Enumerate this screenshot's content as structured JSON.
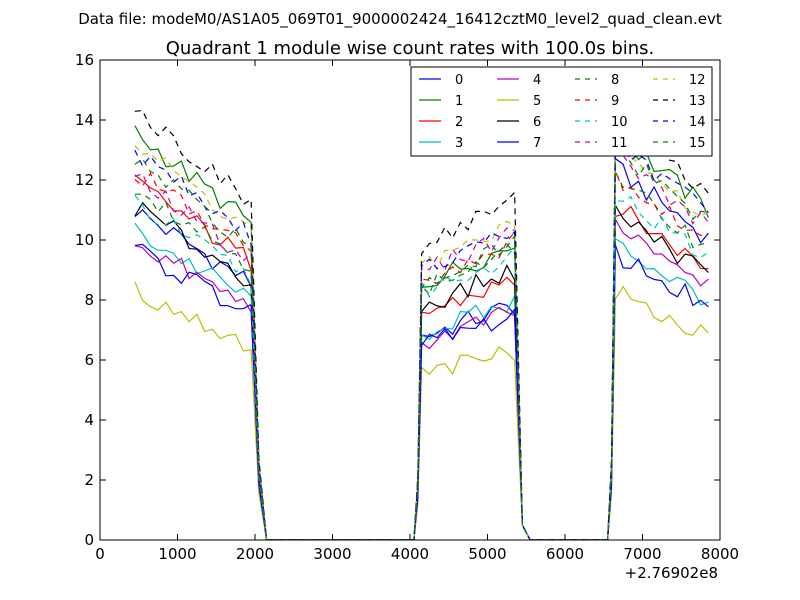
{
  "chart_data": {
    "type": "line",
    "suptitle": "Data file: modeM0/AS1A05_069T01_9000002424_16412cztM0_level2_quad_clean.evt",
    "title": "Quadrant 1 module wise count rates with 100.0s bins.",
    "xlabel": "",
    "ylabel": "",
    "x_offset_label": "+2.76902e8",
    "xlim": [
      0,
      8000
    ],
    "ylim": [
      0,
      16
    ],
    "x_ticks": [
      0,
      1000,
      2000,
      3000,
      4000,
      5000,
      6000,
      7000,
      8000
    ],
    "x_tick_labels": [
      "0",
      "1000",
      "2000",
      "3000",
      "4000",
      "5000",
      "6000",
      "7000",
      "8000"
    ],
    "y_ticks": [
      0,
      2,
      4,
      6,
      8,
      10,
      12,
      14,
      16
    ],
    "y_tick_labels": [
      "0",
      "2",
      "4",
      "6",
      "8",
      "10",
      "12",
      "14",
      "16"
    ],
    "grid": false,
    "legend_position": "top-right",
    "legend_columns": 4,
    "segments": [
      {
        "start": 450,
        "end": 1950,
        "step": 100
      },
      {
        "start": 4150,
        "end": 5350,
        "step": 100
      },
      {
        "start": 6650,
        "end": 7850,
        "step": 100
      }
    ],
    "gap_x": [
      2050,
      2150,
      2250,
      4050,
      5450,
      5550,
      6550
    ],
    "series": [
      {
        "name": "0",
        "color": "#0000ff",
        "dash": "solid",
        "levels": [
          9.4,
          7.3,
          11.7
        ]
      },
      {
        "name": "1",
        "color": "#008000",
        "dash": "solid",
        "levels": [
          11.6,
          9.2,
          12.8
        ]
      },
      {
        "name": "2",
        "color": "#ff0000",
        "dash": "solid",
        "levels": [
          10.2,
          8.1,
          10.5
        ]
      },
      {
        "name": "3",
        "color": "#00bfbf",
        "dash": "solid",
        "levels": [
          8.8,
          7.4,
          9.3
        ]
      },
      {
        "name": "4",
        "color": "#bf00bf",
        "dash": "solid",
        "levels": [
          8.5,
          7.1,
          10.0
        ]
      },
      {
        "name": "5",
        "color": "#bfbf00",
        "dash": "solid",
        "levels": [
          7.1,
          5.9,
          7.8
        ]
      },
      {
        "name": "6",
        "color": "#000000",
        "dash": "solid",
        "levels": [
          9.5,
          8.4,
          10.3
        ]
      },
      {
        "name": "7",
        "color": "#0000ff",
        "dash": "solid",
        "levels": [
          8.3,
          7.0,
          9.0
        ]
      },
      {
        "name": "8",
        "color": "#008000",
        "dash": "dashed",
        "levels": [
          10.1,
          9.0,
          11.3
        ]
      },
      {
        "name": "9",
        "color": "#ff0000",
        "dash": "dashed",
        "levels": [
          10.5,
          9.3,
          11.5
        ]
      },
      {
        "name": "10",
        "color": "#00bfbf",
        "dash": "dashed",
        "levels": [
          9.6,
          8.9,
          10.9
        ]
      },
      {
        "name": "11",
        "color": "#bf00bf",
        "dash": "dashed",
        "levels": [
          10.3,
          9.6,
          12.1
        ]
      },
      {
        "name": "12",
        "color": "#bfbf00",
        "dash": "dashed",
        "levels": [
          11.3,
          9.8,
          12.4
        ]
      },
      {
        "name": "13",
        "color": "#000000",
        "dash": "dashed",
        "levels": [
          12.3,
          10.6,
          13.3
        ]
      },
      {
        "name": "14",
        "color": "#0000ff",
        "dash": "dashed",
        "levels": [
          11.1,
          9.6,
          12.6
        ]
      },
      {
        "name": "15",
        "color": "#008000",
        "dash": "dashed",
        "levels": [
          10.8,
          9.2,
          12.3
        ]
      }
    ]
  }
}
